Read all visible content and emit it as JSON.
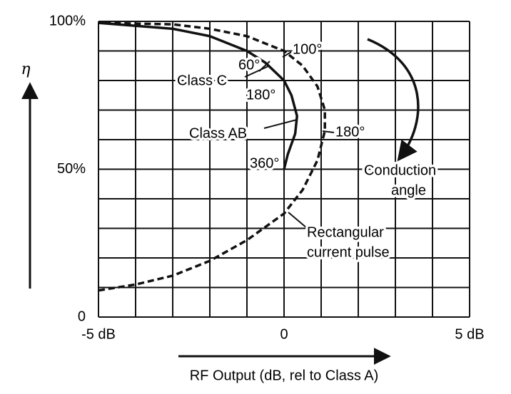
{
  "chart_data": {
    "type": "line",
    "xlabel": "RF Output (dB, rel to Class A)",
    "ylabel": "η",
    "xlim": [
      -5,
      5
    ],
    "xticks": [
      {
        "value": -5,
        "label": "-5 dB"
      },
      0,
      {
        "value": 5,
        "label": "5 dB"
      }
    ],
    "xgrid": [
      -4,
      -3,
      -2,
      -1,
      1,
      2,
      3,
      4
    ],
    "ylim": [
      0,
      100
    ],
    "yticks": [
      0,
      {
        "value": 50,
        "label": "50%"
      },
      {
        "value": 100,
        "label": "100%"
      }
    ],
    "ygrid": [
      10,
      20,
      30,
      40,
      60,
      70,
      80,
      90
    ],
    "grid": true,
    "series": [
      {
        "color": "#111111",
        "style": "solid",
        "x": [
          -5,
          -3,
          -2,
          -1,
          -0.5,
          0,
          0.2,
          0.35,
          0.3,
          0.1,
          0
        ],
        "values": [
          99.5,
          97.5,
          95,
          90,
          86,
          80,
          75,
          68,
          62,
          55,
          50
        ]
      },
      {
        "color": "#111111",
        "style": "dashed",
        "x": [
          -5,
          -4,
          -3,
          -2,
          -1,
          0,
          0.5,
          0.9,
          1.1,
          1.1,
          0.9,
          0.5,
          0,
          -1,
          -2,
          -3,
          -5
        ],
        "values": [
          9,
          11,
          14,
          19,
          26,
          35,
          43,
          53,
          63,
          70,
          78,
          85,
          90,
          95,
          97.5,
          99,
          99.5
        ]
      }
    ],
    "annotations": [
      {
        "text": [
          "60°"
        ]
      },
      {
        "text": [
          "100°"
        ]
      },
      {
        "text": [
          "Class C"
        ]
      },
      {
        "text": [
          "180°"
        ]
      },
      {
        "text": [
          "Class AB"
        ]
      },
      {
        "text": [
          "180°"
        ]
      },
      {
        "text": [
          "360°"
        ]
      },
      {
        "text": [
          "Conduction",
          "angle"
        ]
      },
      {
        "text": [
          "Rectangular",
          "current pulse"
        ]
      }
    ]
  }
}
